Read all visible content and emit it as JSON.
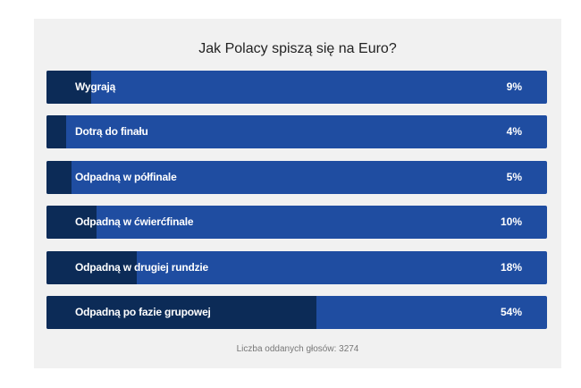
{
  "poll": {
    "title": "Jak Polacy spiszą się na Euro?",
    "options": [
      {
        "label": "Wygrają",
        "percent_text": "9%",
        "percent": 9
      },
      {
        "label": "Dotrą do finału",
        "percent_text": "4%",
        "percent": 4
      },
      {
        "label": "Odpadną w półfinale",
        "percent_text": "5%",
        "percent": 5
      },
      {
        "label": "Odpadną w ćwierćfinale",
        "percent_text": "10%",
        "percent": 10
      },
      {
        "label": "Odpadną w drugiej rundzie",
        "percent_text": "18%",
        "percent": 18
      },
      {
        "label": "Odpadną po fazie grupowej",
        "percent_text": "54%",
        "percent": 54
      }
    ],
    "votes_label": "Liczba oddanych głosów: 3274"
  },
  "colors": {
    "card_background": "#f1f1f1",
    "bar_background": "#1f4da1",
    "bar_fill": "#0c2b57",
    "text_on_bar": "#ffffff"
  }
}
